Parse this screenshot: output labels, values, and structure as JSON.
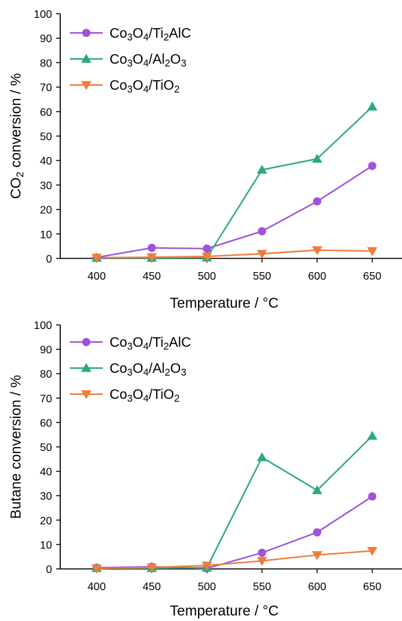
{
  "chart_data": [
    {
      "type": "line",
      "xlabel": "Temperature / °C",
      "ylabel_parts": [
        {
          "t": "CO",
          "sub": false
        },
        {
          "t": "2",
          "sub": true
        },
        {
          "t": " conversion / %",
          "sub": false
        }
      ],
      "x": [
        400,
        450,
        500,
        550,
        600,
        650
      ],
      "xticks": [
        "400",
        "450",
        "500",
        "550",
        "600",
        "650"
      ],
      "yticks": [
        "0",
        "10",
        "20",
        "30",
        "40",
        "50",
        "60",
        "70",
        "80",
        "90",
        "100"
      ],
      "xlim": [
        367,
        677
      ],
      "ylim": [
        0,
        100
      ],
      "grid": false,
      "legend_position": "top-left",
      "series": [
        {
          "name": "Co3O4/Ti2AlC",
          "name_parts": [
            {
              "t": "Co",
              "sub": false
            },
            {
              "t": "3",
              "sub": true
            },
            {
              "t": "O",
              "sub": false
            },
            {
              "t": "4",
              "sub": true
            },
            {
              "t": "/Ti",
              "sub": false
            },
            {
              "t": "2",
              "sub": true
            },
            {
              "t": "AlC",
              "sub": false
            }
          ],
          "color": "#a052d9",
          "marker": "circle",
          "values": [
            0.4,
            4.3,
            4.0,
            11.1,
            23.3,
            37.8
          ]
        },
        {
          "name": "Co3O4/Al2O3",
          "name_parts": [
            {
              "t": "Co",
              "sub": false
            },
            {
              "t": "3",
              "sub": true
            },
            {
              "t": "O",
              "sub": false
            },
            {
              "t": "4",
              "sub": true
            },
            {
              "t": "/Al",
              "sub": false
            },
            {
              "t": "2",
              "sub": true
            },
            {
              "t": "O",
              "sub": false
            },
            {
              "t": "3",
              "sub": true
            }
          ],
          "color": "#2eaa7a",
          "marker": "triangle-up",
          "values": [
            0.2,
            0.2,
            0.3,
            36.2,
            40.7,
            62.0
          ]
        },
        {
          "name": "Co3O4/TiO2",
          "name_parts": [
            {
              "t": "Co",
              "sub": false
            },
            {
              "t": "3",
              "sub": true
            },
            {
              "t": "O",
              "sub": false
            },
            {
              "t": "4",
              "sub": true
            },
            {
              "t": "/TiO",
              "sub": false
            },
            {
              "t": "2",
              "sub": true
            }
          ],
          "color": "#f07c3c",
          "marker": "triangle-down",
          "values": [
            0.3,
            0.5,
            0.8,
            1.9,
            3.4,
            3.0
          ]
        }
      ]
    },
    {
      "type": "line",
      "xlabel": "Temperature / °C",
      "ylabel_parts": [
        {
          "t": "Butane conversion / %",
          "sub": false
        }
      ],
      "x": [
        400,
        450,
        500,
        550,
        600,
        650
      ],
      "xticks": [
        "400",
        "450",
        "500",
        "550",
        "600",
        "650"
      ],
      "yticks": [
        "0",
        "10",
        "20",
        "30",
        "40",
        "50",
        "60",
        "70",
        "80",
        "90",
        "100"
      ],
      "xlim": [
        367,
        677
      ],
      "ylim": [
        0,
        100
      ],
      "grid": false,
      "legend_position": "top-left",
      "series": [
        {
          "name": "Co3O4/Ti2AlC",
          "name_parts": [
            {
              "t": "Co",
              "sub": false
            },
            {
              "t": "3",
              "sub": true
            },
            {
              "t": "O",
              "sub": false
            },
            {
              "t": "4",
              "sub": true
            },
            {
              "t": "/Ti",
              "sub": false
            },
            {
              "t": "2",
              "sub": true
            },
            {
              "t": "AlC",
              "sub": false
            }
          ],
          "color": "#a052d9",
          "marker": "circle",
          "values": [
            0.5,
            0.9,
            0.2,
            6.6,
            15.0,
            29.7
          ]
        },
        {
          "name": "Co3O4/Al2O3",
          "name_parts": [
            {
              "t": "Co",
              "sub": false
            },
            {
              "t": "3",
              "sub": true
            },
            {
              "t": "O",
              "sub": false
            },
            {
              "t": "4",
              "sub": true
            },
            {
              "t": "/Al",
              "sub": false
            },
            {
              "t": "2",
              "sub": true
            },
            {
              "t": "O",
              "sub": false
            },
            {
              "t": "3",
              "sub": true
            }
          ],
          "color": "#2eaa7a",
          "marker": "triangle-up",
          "values": [
            0.3,
            0.3,
            0.5,
            45.7,
            32.2,
            54.5
          ]
        },
        {
          "name": "Co3O4/TiO2",
          "name_parts": [
            {
              "t": "Co",
              "sub": false
            },
            {
              "t": "3",
              "sub": true
            },
            {
              "t": "O",
              "sub": false
            },
            {
              "t": "4",
              "sub": true
            },
            {
              "t": "/TiO",
              "sub": false
            },
            {
              "t": "2",
              "sub": true
            }
          ],
          "color": "#f07c3c",
          "marker": "triangle-down",
          "values": [
            0.2,
            0.6,
            1.4,
            3.3,
            5.7,
            7.4
          ]
        }
      ]
    }
  ]
}
